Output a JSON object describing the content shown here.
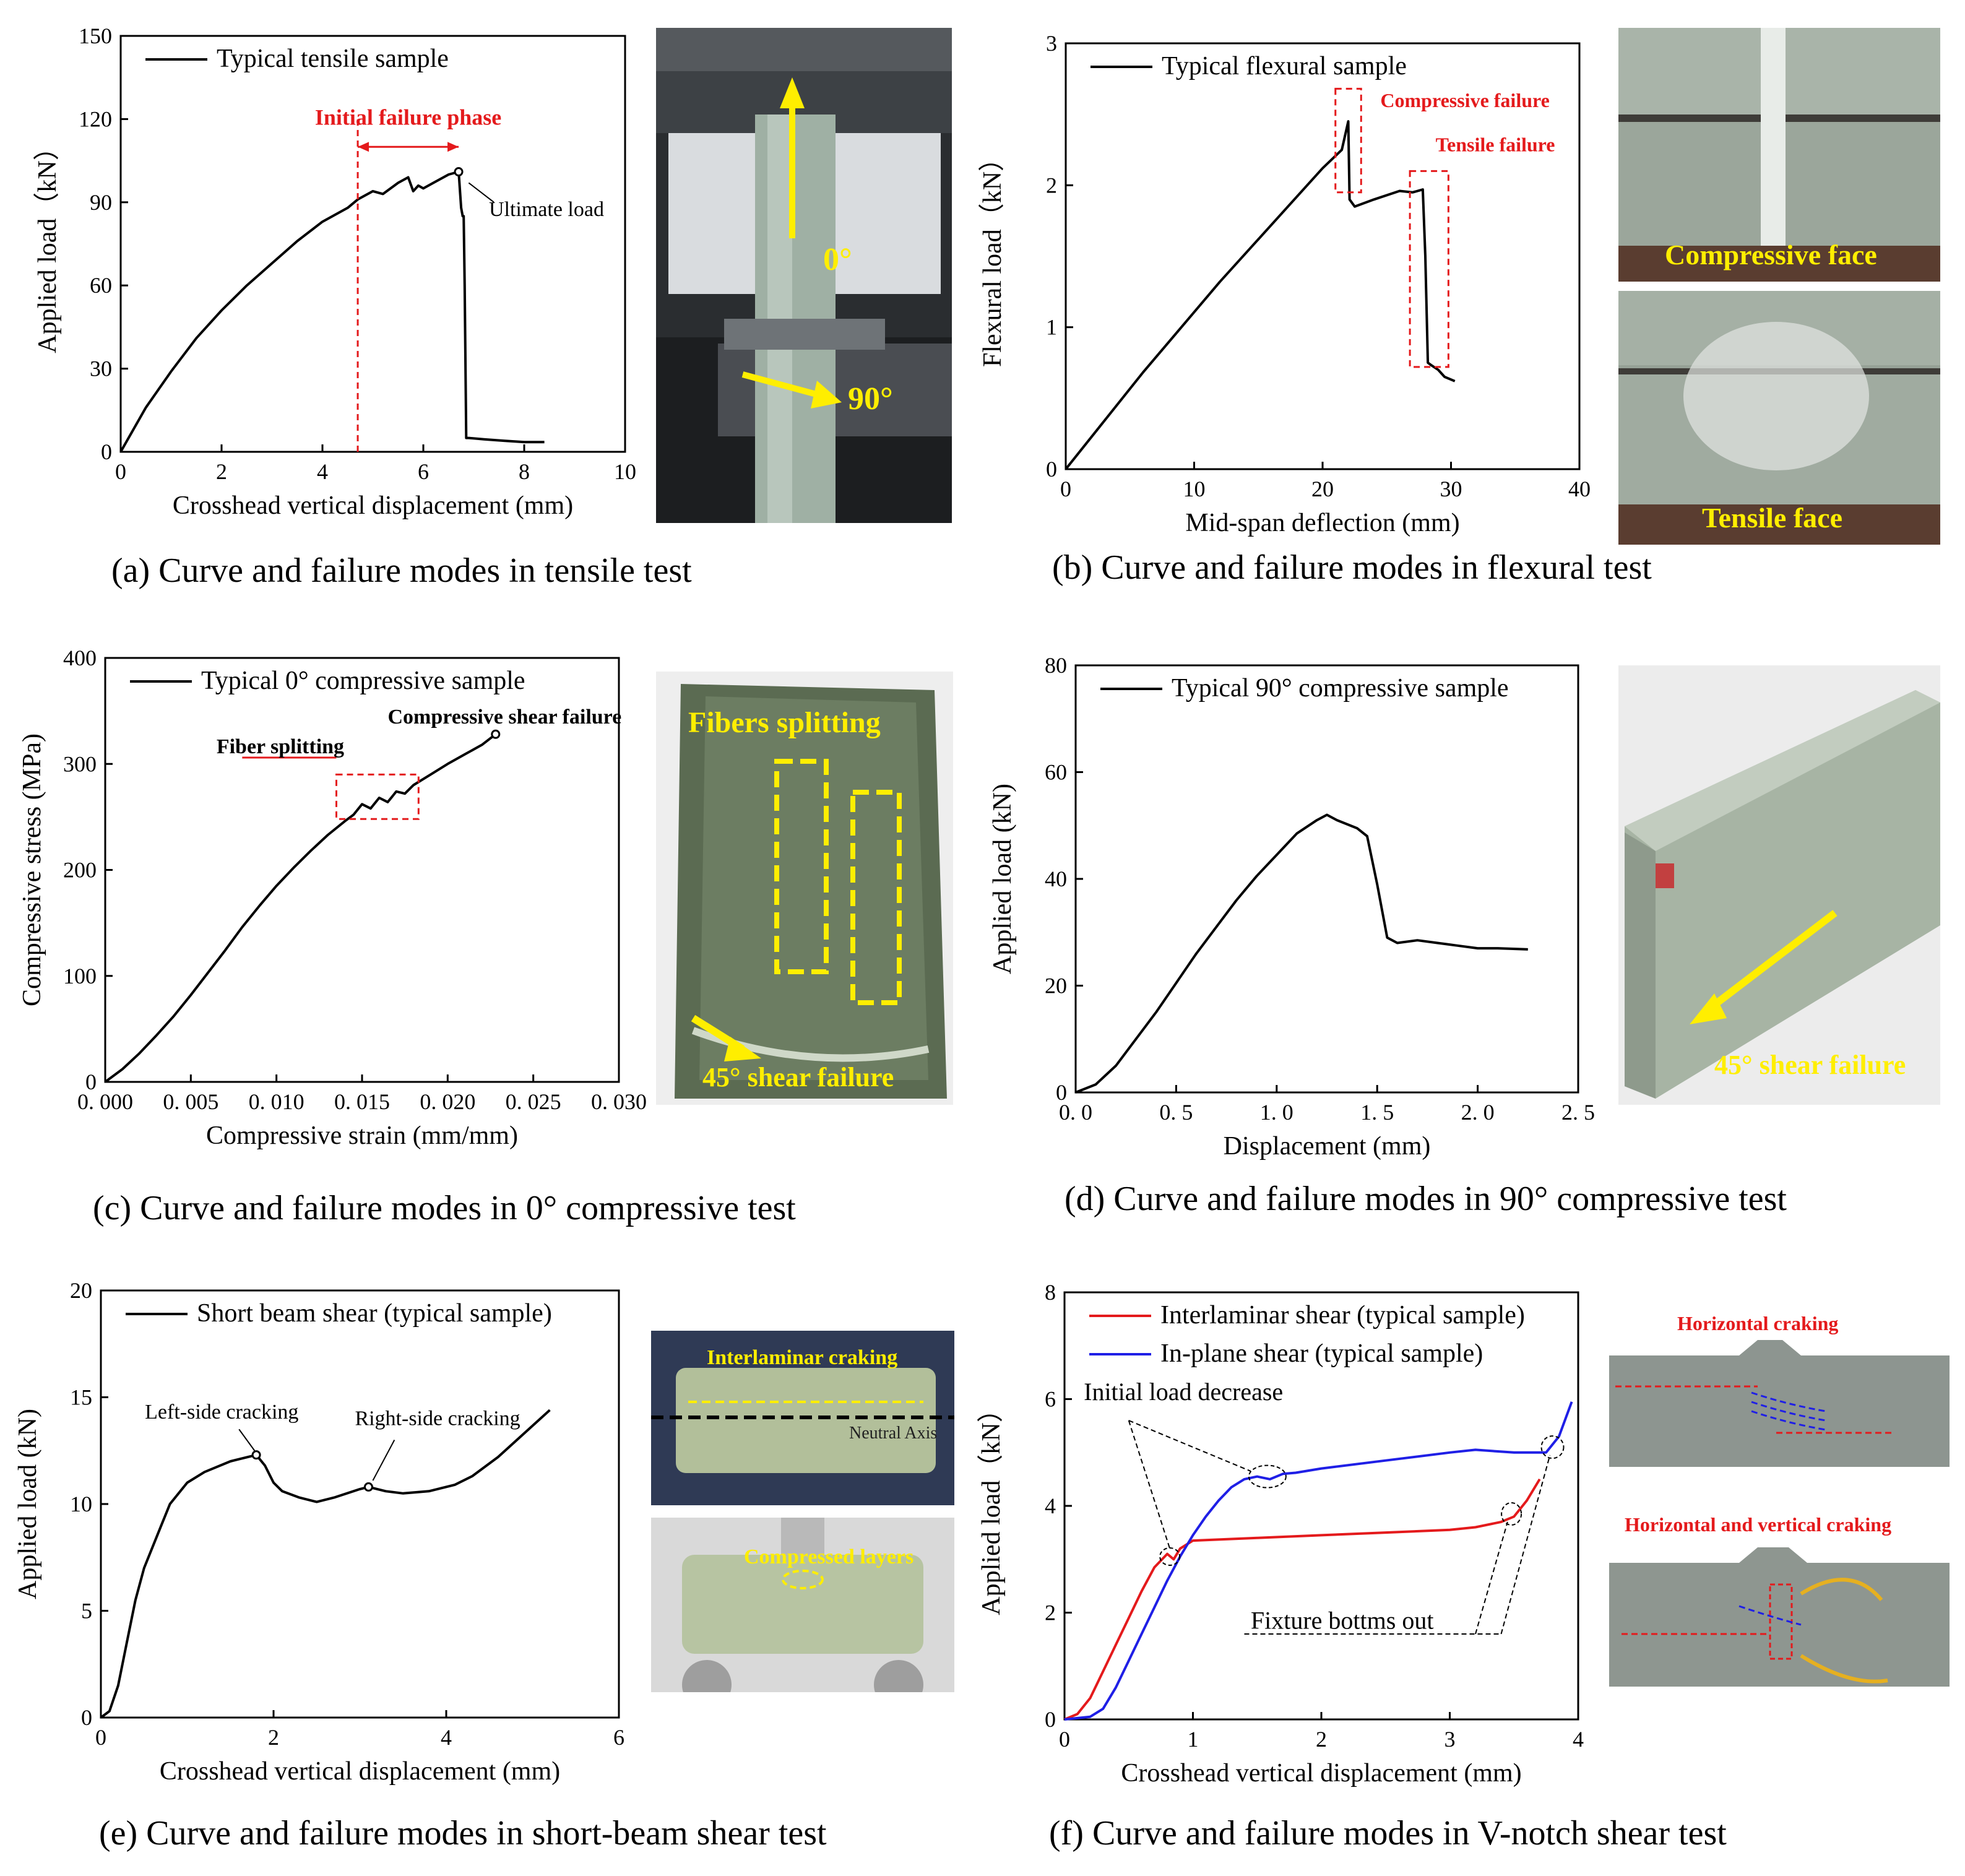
{
  "colors": {
    "red": "#e41a1c",
    "blue": "#1f1fe6",
    "yellow": "#ffee00",
    "black": "#000000"
  },
  "captions": {
    "a": "(a) Curve and failure modes in tensile test",
    "b": "(b) Curve and failure modes in flexural test",
    "c": "(c) Curve and failure modes in 0° compressive test",
    "d": "(d) Curve and failure modes in 90° compressive test",
    "e": "(e) Curve and failure modes in short-beam shear test",
    "f": "(f) Curve and failure modes in V-notch shear test"
  },
  "photos": {
    "a": {
      "arrow_0": "0°",
      "arrow_90": "90°"
    },
    "b": {
      "top": "Compressive face",
      "bottom": "Tensile face"
    },
    "c": {
      "top": "Fibers splitting",
      "bottom": "45° shear failure"
    },
    "d": {
      "bottom": "45° shear failure"
    },
    "e": {
      "top": "Interlaminar craking",
      "axis": "Neutral Axis",
      "bottom": "Compressed layers"
    },
    "f": {
      "top": "Horizontal craking",
      "bottom": "Horizontal and vertical craking"
    }
  },
  "chart_data": [
    {
      "id": "a",
      "type": "line",
      "xlabel": "Crosshead vertical displacement (mm)",
      "ylabel": "Applied load（kN）",
      "xlim": [
        0,
        10
      ],
      "ylim": [
        0,
        150
      ],
      "xticks": [
        "0",
        "2",
        "4",
        "6",
        "8",
        "10"
      ],
      "yticks": [
        "0",
        "30",
        "60",
        "90",
        "120",
        "150"
      ],
      "series": [
        {
          "name": "Typical tensile sample",
          "color": "#000000",
          "x": [
            0,
            0.5,
            1,
            1.5,
            2,
            2.5,
            3,
            3.5,
            4,
            4.5,
            4.7,
            5.0,
            5.2,
            5.5,
            5.7,
            5.8,
            5.9,
            6.0,
            6.2,
            6.5,
            6.7,
            6.75,
            6.78,
            6.8,
            6.82,
            6.85,
            6.9,
            7.2,
            7.6,
            8.0,
            8.4
          ],
          "y": [
            0,
            16,
            29,
            41,
            51,
            60,
            68,
            76,
            83,
            88,
            91,
            94,
            93,
            97,
            99,
            94,
            96,
            95,
            97,
            100,
            101,
            88,
            85,
            85,
            60,
            5,
            5,
            4.5,
            4,
            3.5,
            3.5
          ]
        }
      ],
      "annotations": {
        "phase": "Initial failure phase",
        "ultimate": "Ultimate load"
      }
    },
    {
      "id": "b",
      "type": "line",
      "xlabel": "Mid-span deflection (mm)",
      "ylabel": "Flexural load（kN）",
      "xlim": [
        0,
        40
      ],
      "ylim": [
        0,
        3
      ],
      "xticks": [
        "0",
        "10",
        "20",
        "30",
        "40"
      ],
      "yticks": [
        "0",
        "1",
        "2",
        "3"
      ],
      "series": [
        {
          "name": "Typical flexural sample",
          "color": "#000000",
          "x": [
            0,
            3,
            6,
            9,
            12,
            15,
            18,
            20,
            21.5,
            22,
            22.1,
            22.5,
            24,
            26,
            27,
            27.8,
            28,
            28.2,
            28.5,
            29,
            29.5,
            30.3
          ],
          "y": [
            0,
            0.34,
            0.68,
            1.0,
            1.32,
            1.62,
            1.92,
            2.12,
            2.25,
            2.45,
            1.9,
            1.85,
            1.9,
            1.96,
            1.95,
            1.97,
            1.5,
            0.75,
            0.73,
            0.7,
            0.65,
            0.62
          ]
        }
      ],
      "annotations": {
        "compressive": "Compressive failure",
        "tensile": "Tensile failure"
      }
    },
    {
      "id": "c",
      "type": "line",
      "xlabel": "Compressive strain (mm/mm)",
      "ylabel": "Compressive stress (MPa)",
      "xlim": [
        0,
        0.03
      ],
      "ylim": [
        0,
        400
      ],
      "xticks": [
        "0. 000",
        "0. 005",
        "0. 010",
        "0. 015",
        "0. 020",
        "0. 025",
        "0. 030"
      ],
      "yticks": [
        "0",
        "100",
        "200",
        "300",
        "400"
      ],
      "series": [
        {
          "name": "Typical 0° compressive sample",
          "color": "#000000",
          "x": [
            0,
            0.001,
            0.002,
            0.003,
            0.004,
            0.005,
            0.006,
            0.007,
            0.008,
            0.009,
            0.01,
            0.011,
            0.012,
            0.013,
            0.014,
            0.0145,
            0.015,
            0.0155,
            0.016,
            0.0165,
            0.017,
            0.0175,
            0.018,
            0.019,
            0.02,
            0.021,
            0.022,
            0.0228
          ],
          "y": [
            0,
            12,
            27,
            44,
            62,
            82,
            103,
            124,
            146,
            166,
            185,
            202,
            218,
            233,
            246,
            252,
            262,
            258,
            268,
            264,
            274,
            272,
            280,
            290,
            300,
            309,
            318,
            328
          ]
        }
      ],
      "annotations": {
        "splitting": "Fiber splitting",
        "shear": "Compressive shear failure"
      }
    },
    {
      "id": "d",
      "type": "line",
      "xlabel": "Displacement (mm)",
      "ylabel": "Applied load (kN)",
      "xlim": [
        0,
        2.5
      ],
      "ylim": [
        0,
        80
      ],
      "xticks": [
        "0. 0",
        "0. 5",
        "1. 0",
        "1. 5",
        "2. 0",
        "2. 5"
      ],
      "yticks": [
        "0",
        "20",
        "40",
        "60",
        "80"
      ],
      "series": [
        {
          "name": "Typical 90° compressive sample",
          "color": "#000000",
          "x": [
            0,
            0.1,
            0.2,
            0.3,
            0.4,
            0.5,
            0.6,
            0.7,
            0.8,
            0.9,
            1.0,
            1.1,
            1.2,
            1.25,
            1.3,
            1.4,
            1.45,
            1.5,
            1.55,
            1.6,
            1.7,
            1.8,
            1.9,
            2.0,
            2.1,
            2.25
          ],
          "y": [
            0,
            1.5,
            5,
            10,
            15,
            20.5,
            26,
            31,
            36,
            40.5,
            44.5,
            48.5,
            51,
            52,
            51,
            49.5,
            48,
            39,
            29,
            28,
            28.5,
            28,
            27.5,
            27,
            27,
            26.8
          ]
        }
      ],
      "annotations": {}
    },
    {
      "id": "e",
      "type": "line",
      "xlabel": "Crosshead vertical displacement (mm)",
      "ylabel": "Applied load (kN)",
      "xlim": [
        0,
        6
      ],
      "ylim": [
        0,
        20
      ],
      "xticks": [
        "0",
        "2",
        "4",
        "6"
      ],
      "yticks": [
        "0",
        "5",
        "10",
        "15",
        "20"
      ],
      "series": [
        {
          "name": "Short beam shear (typical sample)",
          "color": "#000000",
          "x": [
            0,
            0.1,
            0.2,
            0.3,
            0.4,
            0.5,
            0.6,
            0.7,
            0.8,
            1.0,
            1.2,
            1.5,
            1.8,
            1.9,
            2.0,
            2.1,
            2.3,
            2.5,
            2.7,
            3.0,
            3.1,
            3.3,
            3.5,
            3.8,
            4.1,
            4.3,
            4.6,
            4.9,
            5.2
          ],
          "y": [
            0,
            0.3,
            1.5,
            3.5,
            5.5,
            7,
            8,
            9,
            10,
            11,
            11.5,
            12,
            12.3,
            11.8,
            11,
            10.6,
            10.3,
            10.1,
            10.3,
            10.7,
            10.8,
            10.6,
            10.5,
            10.6,
            10.9,
            11.3,
            12.2,
            13.3,
            14.4
          ]
        }
      ],
      "annotations": {
        "left": "Left-side cracking",
        "right": "Right-side cracking"
      }
    },
    {
      "id": "f",
      "type": "line",
      "xlabel": "Crosshead vertical displacement (mm)",
      "ylabel": "Applied load（kN）",
      "xlim": [
        0,
        4
      ],
      "ylim": [
        0,
        8
      ],
      "xticks": [
        "0",
        "1",
        "2",
        "3",
        "4"
      ],
      "yticks": [
        "0",
        "2",
        "4",
        "6",
        "8"
      ],
      "series": [
        {
          "name": "Interlaminar shear (typical sample)",
          "color": "#e41a1c",
          "x": [
            0,
            0.1,
            0.2,
            0.3,
            0.4,
            0.5,
            0.6,
            0.7,
            0.8,
            0.85,
            0.9,
            1.0,
            1.5,
            2.0,
            2.5,
            3.0,
            3.2,
            3.4,
            3.5,
            3.6,
            3.7
          ],
          "y": [
            0,
            0.1,
            0.4,
            0.9,
            1.4,
            1.9,
            2.4,
            2.85,
            3.1,
            3.0,
            3.2,
            3.35,
            3.4,
            3.45,
            3.5,
            3.55,
            3.6,
            3.7,
            3.8,
            4.1,
            4.5
          ]
        },
        {
          "name": "In-plane shear (typical sample)",
          "color": "#1f1fe6",
          "x": [
            0,
            0.2,
            0.3,
            0.4,
            0.5,
            0.6,
            0.7,
            0.8,
            0.9,
            1.0,
            1.1,
            1.2,
            1.3,
            1.4,
            1.5,
            1.6,
            1.7,
            1.8,
            2.0,
            2.5,
            3.0,
            3.2,
            3.5,
            3.75,
            3.85,
            3.95
          ],
          "y": [
            0,
            0.05,
            0.2,
            0.6,
            1.1,
            1.6,
            2.1,
            2.6,
            3.05,
            3.45,
            3.8,
            4.1,
            4.35,
            4.5,
            4.55,
            4.5,
            4.6,
            4.62,
            4.7,
            4.85,
            5.0,
            5.05,
            5.0,
            5.0,
            5.3,
            5.95
          ]
        }
      ],
      "annotations": {
        "decrease": "Initial load decrease",
        "bottoms": "Fixture bottms out"
      }
    }
  ]
}
